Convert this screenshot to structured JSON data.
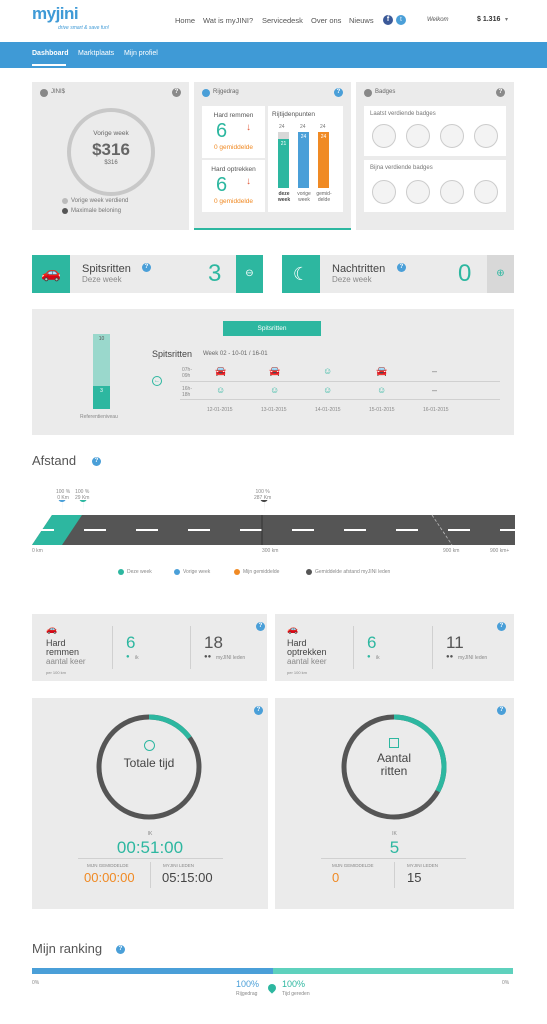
{
  "brand": {
    "logo": "myjini",
    "tagline": "drive smart & save fun!"
  },
  "topnav": {
    "home": "Home",
    "what": "Wat is myJINI?",
    "service": "Servicedesk",
    "about": "Over ons",
    "news": "Nieuws",
    "welcome": "Welkom",
    "points": "1.316"
  },
  "subnav": {
    "dashboard": "Dashboard",
    "market": "Marktplaats",
    "profile": "Mijn profiel"
  },
  "jinis": {
    "title": "JINI$",
    "label": "Vorige week",
    "value": "316",
    "sub": "316",
    "legend1": "Vorige week verdiend",
    "legend2": "Maximale beloning"
  },
  "rijgedrag": {
    "title": "Rijgedrag",
    "hard_brake_label": "Hard remmen",
    "hard_brake_value": "6",
    "hard_brake_avg": "0 gemiddelde",
    "hard_acc_label": "Hard optrekken",
    "hard_acc_value": "6",
    "hard_acc_avg": "0 gemiddelde",
    "points_title": "Rijtijdenpunten",
    "bars": [
      {
        "top": "24",
        "value": "21",
        "label1": "deze",
        "label2": "week"
      },
      {
        "top": "24",
        "value": "24",
        "label1": "vorige",
        "label2": "week"
      },
      {
        "top": "24",
        "value": "24",
        "label1": "gemid-",
        "label2": "delde"
      }
    ]
  },
  "badges": {
    "title": "Badges",
    "earned": "Laatst verdiende badges",
    "almost": "Bijna verdiende badges"
  },
  "spits": {
    "title": "Spitsritten",
    "sub": "Deze week",
    "count": "3"
  },
  "nacht": {
    "title": "Nachtritten",
    "sub": "Deze week",
    "count": "0"
  },
  "spits_detail": {
    "tab": "Spitsritten",
    "heading": "Spitsritten",
    "week": "Week 02 - 10-01 / 16-01",
    "bar_top": "10",
    "bar_bottom": "3",
    "ref": "Referentieniveau",
    "row1a": "07h-",
    "row1b": "09h",
    "row2a": "16h-",
    "row2b": "18h",
    "dates": [
      "12-01-2015",
      "13-01-2015",
      "14-01-2015",
      "15-01-2015",
      "16-01-2015"
    ]
  },
  "afstand": {
    "title": "Afstand",
    "m1_pct": "100 %",
    "m1_km": "0 Km",
    "m2_pct": "100 %",
    "m2_km": "29 Km",
    "m3_pct": "100 %",
    "m3_km": "287 Km",
    "t0": "0 km",
    "t1": "300 km",
    "t2": "900 km",
    "t3": "900 km+",
    "legend": [
      "Deze week",
      "Vorige week",
      "Mijn gemiddelde",
      "Gemiddelde afstand myJINI leden"
    ]
  },
  "hard1": {
    "l1": "Hard",
    "l2": "remmen",
    "l3": "aantal keer",
    "per": "per 100 km",
    "me": "6",
    "me_label": "ik",
    "others": "18",
    "others_label": "myJINI leden"
  },
  "hard2": {
    "l1": "Hard",
    "l2": "optrekken",
    "l3": "aantal keer",
    "per": "per 100 km",
    "me": "6",
    "me_label": "ik",
    "others": "11",
    "others_label": "myJINI leden"
  },
  "tijd": {
    "title": "Totale tijd",
    "ik": "IK",
    "value": "00:51:00",
    "avg_label": "MIJN GEMIDDELDE",
    "avg": "00:00:00",
    "leden_label": "MYJINI LEDEN",
    "leden": "05:15:00",
    "progress": 0.15
  },
  "ritten": {
    "title1": "Aantal",
    "title2": "ritten",
    "ik": "IK",
    "value": "5",
    "avg_label": "MIJN GEMIDDELDE",
    "avg": "0",
    "leden_label": "MYJINI LEDEN",
    "leden": "15",
    "progress": 0.33
  },
  "ranking": {
    "title": "Mijn ranking",
    "left": "0%",
    "right": "0%",
    "v1": "100%",
    "l1": "Rijgedrag",
    "v2": "100%",
    "l2": "Tijd gereden"
  },
  "colors": {
    "teal": "#2db7a0",
    "blue": "#4a9fd8",
    "orange": "#f08a24",
    "dark": "#555555",
    "navblue": "#3f9ad6"
  }
}
